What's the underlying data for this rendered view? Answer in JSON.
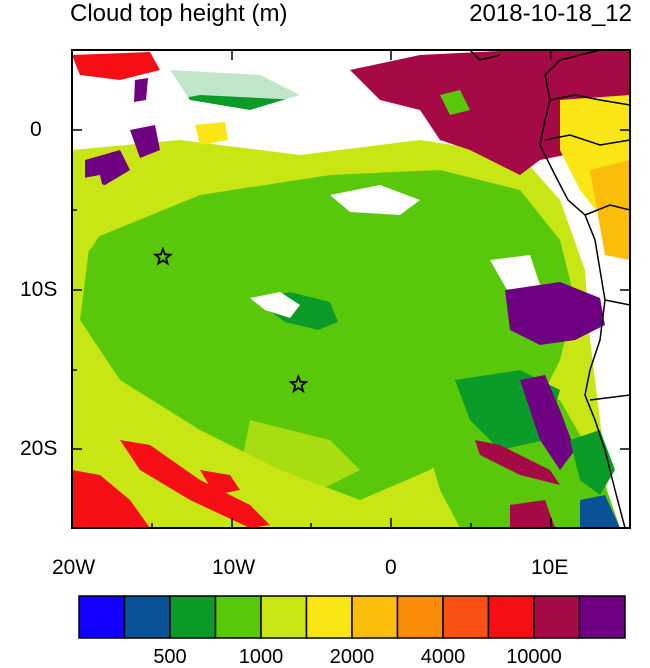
{
  "title": "Cloud top height (m)",
  "datetime": "2018-10-18_12",
  "axes": {
    "x_ticks": [
      "20W",
      "10W",
      "0",
      "10E"
    ],
    "y_ticks": [
      "0",
      "10S",
      "20S"
    ]
  },
  "colorbar": {
    "colors": [
      "#1400ff",
      "#0a5296",
      "#0a9b28",
      "#5ac80a",
      "#c8e614",
      "#fae614",
      "#fabe0a",
      "#fa8c0a",
      "#fa5014",
      "#f50f14",
      "#a50a46",
      "#6e0082"
    ],
    "labels": [
      "500",
      "1000",
      "2000",
      "4000",
      "10000"
    ]
  },
  "markers": [
    {
      "lon": -14.3,
      "lat": -8.0,
      "symbol": "star"
    },
    {
      "lon": -5.8,
      "lat": -16.0,
      "symbol": "star"
    }
  ],
  "map": {
    "lon_range": [
      -20,
      15
    ],
    "lat_range": [
      -25,
      5
    ]
  }
}
